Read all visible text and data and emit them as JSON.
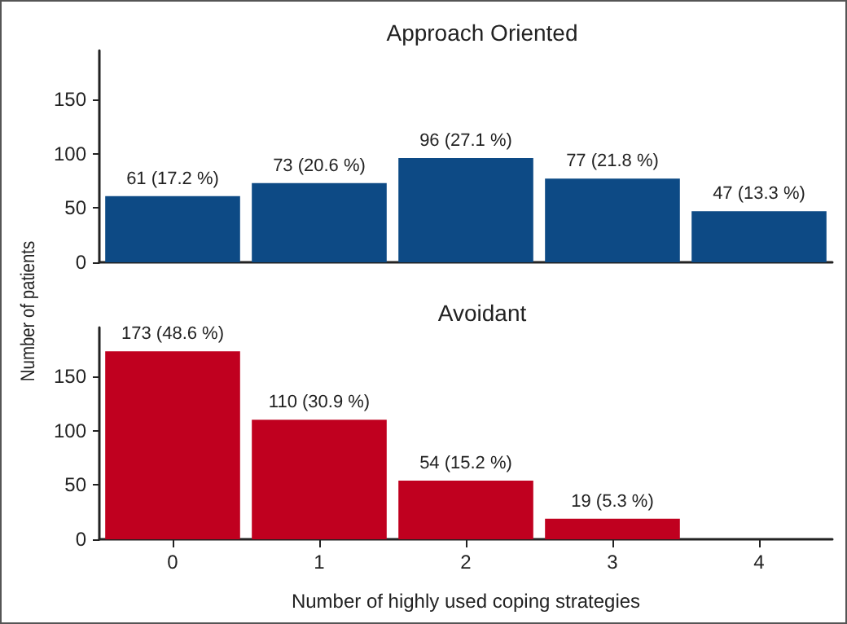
{
  "chart_data": [
    {
      "type": "bar",
      "title": "Approach Oriented",
      "ylabel": "Number of patients",
      "categories": [
        "0",
        "1",
        "2",
        "3",
        "4"
      ],
      "values": [
        61,
        73,
        96,
        77,
        47
      ],
      "color": "#0d4a85",
      "value_labels": [
        "61 (17.2 %)",
        "73 (20.6 %)",
        "96 (27.1 %)",
        "77 (21.8 %)",
        "47 (13.3 %)"
      ],
      "ylim": [
        0,
        195
      ],
      "yticks": [
        0,
        50,
        100,
        150
      ],
      "tick_labels": "y"
    },
    {
      "type": "bar",
      "title": "Avoidant",
      "xlabel": "Number of highly used coping strategies",
      "categories": [
        "0",
        "1",
        "2",
        "3",
        "4"
      ],
      "values": [
        173,
        110,
        54,
        19,
        0
      ],
      "color": "#c0001f",
      "value_labels": [
        "173 (48.6 %)",
        "110 (30.9 %)",
        "54 (15.2 %)",
        "19 (5.3 %)",
        null
      ],
      "ylim": [
        0,
        195
      ],
      "yticks": [
        0,
        50,
        100,
        150
      ]
    }
  ]
}
